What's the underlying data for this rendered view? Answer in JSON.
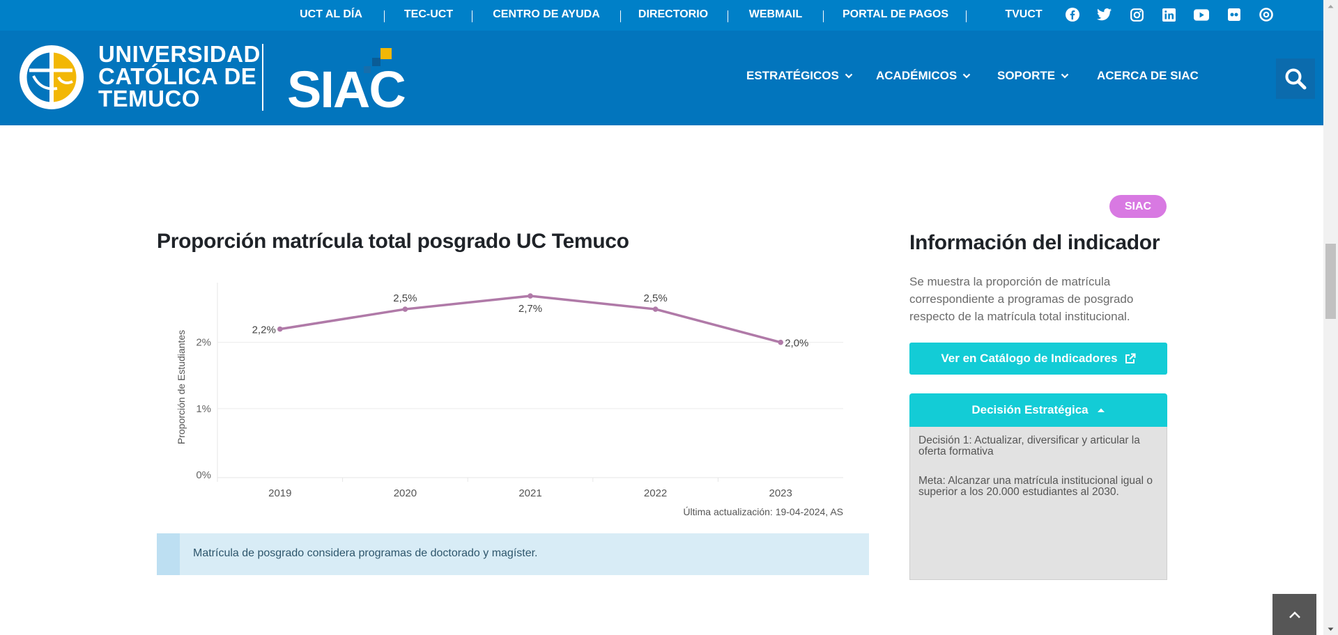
{
  "topbar": {
    "links": [
      "UCT AL DÍA",
      "TEC-UCT",
      "CENTRO DE AYUDA",
      "DIRECTORIO",
      "WEBMAIL",
      "PORTAL DE PAGOS",
      "TVUCT"
    ],
    "social_icons": [
      "facebook-icon",
      "twitter-icon",
      "instagram-icon",
      "linkedin-icon",
      "youtube-icon",
      "flickr-icon",
      "issuu-icon"
    ]
  },
  "header": {
    "logo_lines": [
      "UNIVERSIDAD",
      "CATÓLICA DE",
      "TEMUCO"
    ],
    "siac_logo": "SIAC",
    "nav": [
      {
        "label": "ESTRATÉGICOS",
        "dropdown": true
      },
      {
        "label": "ACADÉMICOS",
        "dropdown": true
      },
      {
        "label": "SOPORTE",
        "dropdown": true
      },
      {
        "label": "ACERCA DE SIAC",
        "dropdown": false
      }
    ],
    "search_icon": "search-icon"
  },
  "colors": {
    "topbar": "#0080c8",
    "header": "#0275bd",
    "accent": "#13ccd6",
    "badge": "#d879e2",
    "series": "#b07aa8"
  },
  "main": {
    "title": "Proporción matrícula total posgrado UC Temuco",
    "updated": "Última actualización: 19-04-2024, AS",
    "note": "Matrícula de posgrado considera programas de doctorado y magíster."
  },
  "chart_data": {
    "type": "line",
    "categories": [
      "2019",
      "2020",
      "2021",
      "2022",
      "2023"
    ],
    "series": [
      {
        "values": [
          2.2,
          2.5,
          2.7,
          2.5,
          2.0
        ],
        "data_labels": [
          "2,2%",
          "2,5%",
          "2,7%",
          "2,5%",
          "2,0%"
        ]
      }
    ],
    "ylabel": "Proporción de Estudiantes",
    "xlabel": "",
    "yticks": [
      {
        "value": 0,
        "label": "0%"
      },
      {
        "value": 1,
        "label": "1%"
      },
      {
        "value": 2,
        "label": "2%"
      }
    ],
    "ylim": [
      0,
      2.9
    ],
    "grid": true,
    "legend": "none"
  },
  "sidebar": {
    "badge": "SIAC",
    "title": "Información del indicador",
    "description": "Se muestra la proporción de matrícula correspondiente a programas de posgrado respecto de la matrícula total institucional.",
    "catalog_button": "Ver en Catálogo de Indicadores",
    "decision_header": "Decisión Estratégica",
    "decision_text": "Decisión 1: Actualizar, diversificar y articular la oferta formativa",
    "goal_text": "Meta: Alcanzar una matrícula institucional igual o superior a los 20.000 estudiantes al 2030."
  }
}
